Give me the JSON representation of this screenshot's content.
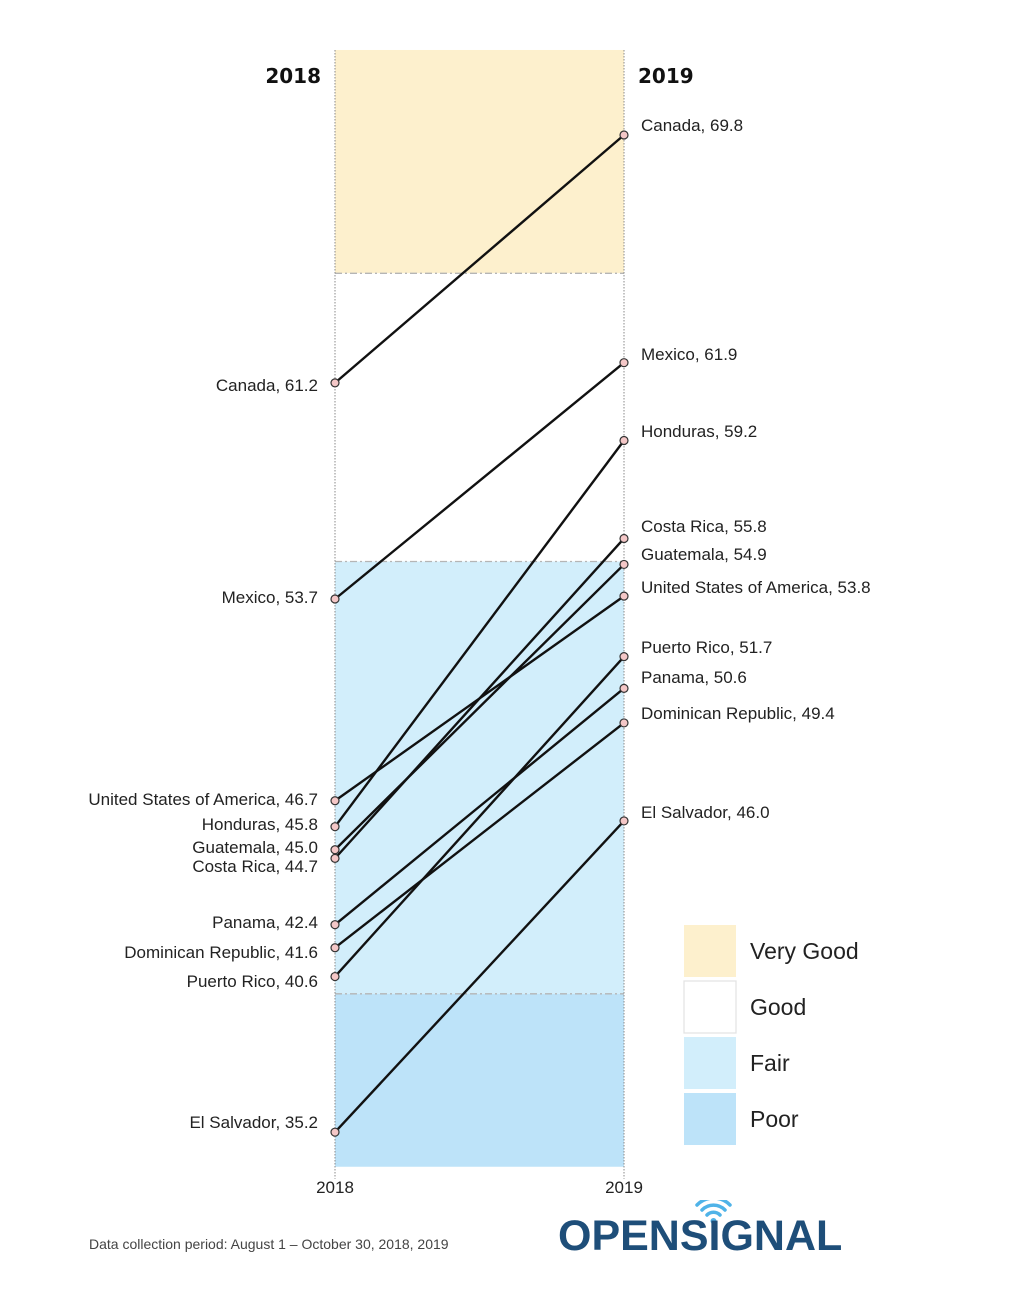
{
  "chart_data": {
    "type": "slope",
    "title": "",
    "xlabel": "",
    "ylabel": "",
    "categories": [
      "2018",
      "2019"
    ],
    "header_labels": [
      "2018",
      "2019"
    ],
    "x_tick_labels": [
      "2018",
      "2019"
    ],
    "ylim": [
      34.0,
      72.75
    ],
    "series": [
      {
        "name": "Canada",
        "values": [
          61.2,
          69.8
        ]
      },
      {
        "name": "Mexico",
        "values": [
          53.7,
          61.9
        ]
      },
      {
        "name": "Honduras",
        "values": [
          45.8,
          59.2
        ]
      },
      {
        "name": "Costa Rica",
        "values": [
          44.7,
          55.8
        ]
      },
      {
        "name": "Guatemala",
        "values": [
          45.0,
          54.9
        ]
      },
      {
        "name": "United States of America",
        "values": [
          46.7,
          53.8
        ]
      },
      {
        "name": "Puerto Rico",
        "values": [
          40.6,
          51.7
        ]
      },
      {
        "name": "Panama",
        "values": [
          42.4,
          50.6
        ]
      },
      {
        "name": "Dominican Republic",
        "values": [
          41.6,
          49.4
        ]
      },
      {
        "name": "El Salvador",
        "values": [
          35.2,
          46.0
        ]
      }
    ],
    "bands": [
      {
        "name": "Very Good",
        "from": 65.0,
        "to": 72.75,
        "color": "#fdf0cd"
      },
      {
        "name": "Good",
        "from": 55.0,
        "to": 65.0,
        "color": "#ffffff"
      },
      {
        "name": "Fair",
        "from": 40.0,
        "to": 55.0,
        "color": "#d2eefb"
      },
      {
        "name": "Poor",
        "from": 34.0,
        "to": 40.0,
        "color": "#bde3f9"
      }
    ],
    "legend": {
      "position": "bottom-right",
      "entries": [
        "Very Good",
        "Good",
        "Fair",
        "Poor"
      ]
    },
    "marker_color": "#f4c7c7",
    "line_color": "#111111"
  },
  "left_labels": {
    "Canada": "Canada, 61.2",
    "Mexico": "Mexico, 53.7",
    "United States of America": "United States of America, 46.7",
    "Honduras": "Honduras, 45.8",
    "Guatemala": "Guatemala, 45.0",
    "Costa Rica": "Costa Rica, 44.7",
    "Panama": "Panama, 42.4",
    "Dominican Republic": "Dominican Republic, 41.6",
    "Puerto Rico": "Puerto Rico, 40.6",
    "El Salvador": "El Salvador, 35.2"
  },
  "right_labels": {
    "Canada": "Canada, 69.8",
    "Mexico": "Mexico, 61.9",
    "Honduras": "Honduras, 59.2",
    "Costa Rica": "Costa Rica, 55.8",
    "Guatemala": "Guatemala, 54.9",
    "United States of America": "United States of America, 53.8",
    "Puerto Rico": "Puerto Rico, 51.7",
    "Panama": "Panama, 50.6",
    "Dominican Republic": "Dominican Republic, 49.4",
    "El Salvador": "El Salvador, 46.0"
  },
  "footer": {
    "note": "Data collection period: August 1 – October  30, 2018, 2019",
    "logo_text": "OPENSIGNAL",
    "logo_icon": "wifi-signal-icon"
  },
  "colors": {
    "logo_text": "#1e4e79",
    "logo_accent": "#4fb3e8"
  }
}
